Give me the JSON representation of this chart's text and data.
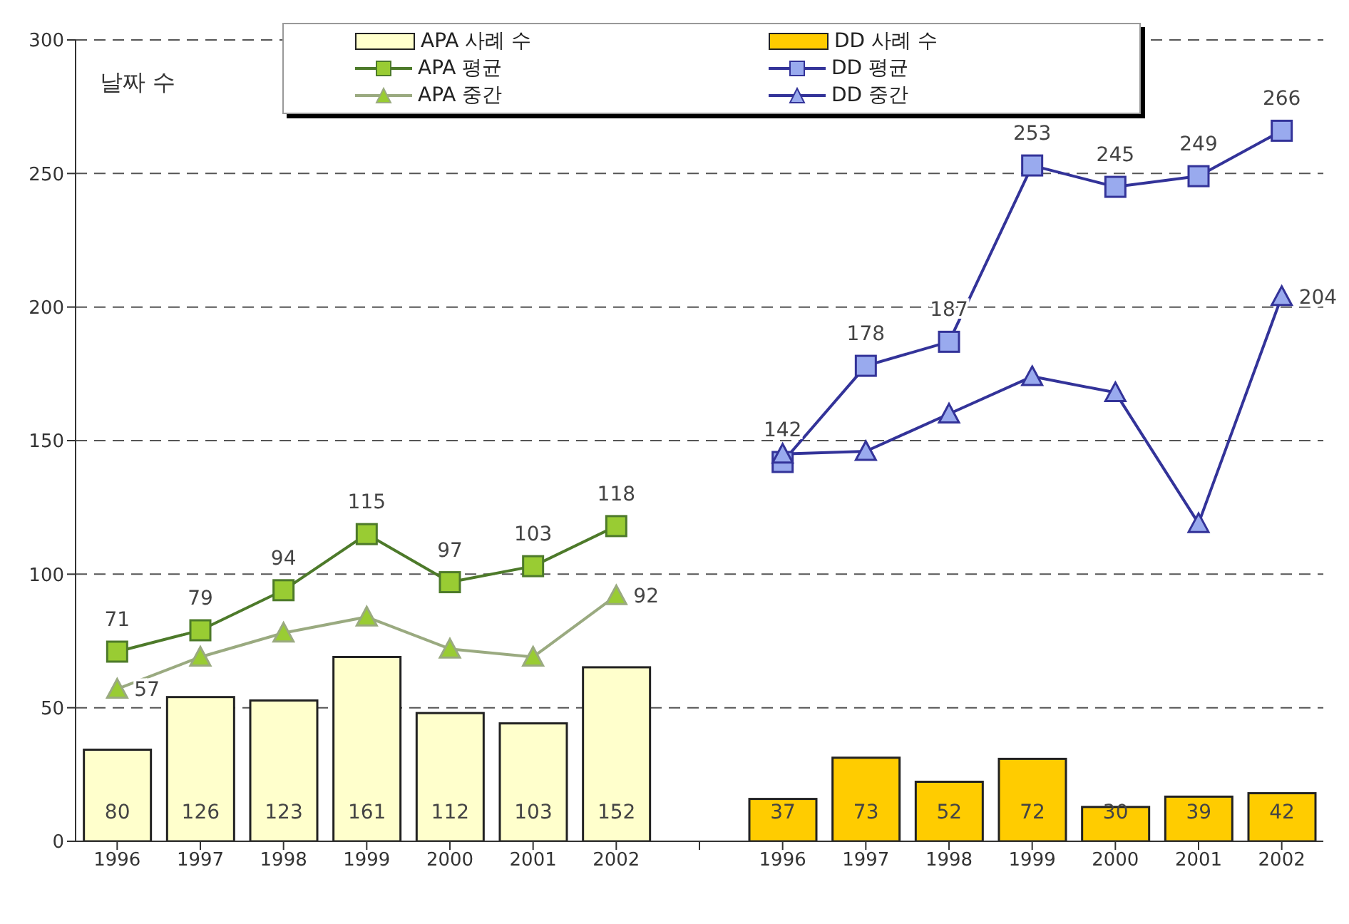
{
  "chart_data": {
    "type": "line",
    "ylabel": "날짜 수",
    "categories": [
      "1996",
      "1997",
      "1998",
      "1999",
      "2000",
      "2001",
      "2002",
      null,
      "1996",
      "1997",
      "1998",
      "1999",
      "2000",
      "2001",
      "2002"
    ],
    "series": [
      {
        "name": "APA 사례 수",
        "type": "bar",
        "axis": "y2",
        "color": "#ffffcc",
        "values": [
          80,
          126,
          123,
          161,
          112,
          103,
          152,
          null,
          null,
          null,
          null,
          null,
          null,
          null,
          null
        ],
        "value_labels": [
          "80",
          "126",
          "123",
          "161",
          "112",
          "103",
          "152",
          null,
          null,
          null,
          null,
          null,
          null,
          null,
          null
        ]
      },
      {
        "name": "DD 사례 수",
        "type": "bar",
        "axis": "y2",
        "color": "#ffcc00",
        "values": [
          null,
          null,
          null,
          null,
          null,
          null,
          null,
          null,
          37,
          73,
          52,
          72,
          30,
          39,
          42
        ],
        "value_labels": [
          null,
          null,
          null,
          null,
          null,
          null,
          null,
          null,
          "37",
          "73",
          "52",
          "72",
          "30",
          "39",
          "42"
        ]
      },
      {
        "name": "APA 평균",
        "color": "#4d7a2a",
        "marker": "square",
        "values": [
          71,
          79,
          94,
          115,
          97,
          103,
          118,
          null,
          null,
          null,
          null,
          null,
          null,
          null,
          null
        ],
        "value_labels": [
          "71",
          "79",
          "94",
          "115",
          "97",
          "103",
          "118",
          null,
          null,
          null,
          null,
          null,
          null,
          null,
          null
        ]
      },
      {
        "name": "DD 평균",
        "color": "#333399",
        "marker": "square",
        "values": [
          null,
          null,
          null,
          null,
          null,
          null,
          null,
          null,
          142,
          178,
          187,
          253,
          245,
          249,
          266
        ],
        "value_labels": [
          null,
          null,
          null,
          null,
          null,
          null,
          null,
          null,
          "142",
          "178",
          "187",
          "253",
          "245",
          "249",
          "266"
        ]
      },
      {
        "name": "APA 중간",
        "color": "#9aaa80",
        "marker": "triangle",
        "values": [
          57,
          69,
          78,
          84,
          72,
          69,
          92,
          null,
          null,
          null,
          null,
          null,
          null,
          null,
          null
        ],
        "value_labels": [
          "57",
          null,
          null,
          null,
          null,
          null,
          "92",
          null,
          null,
          null,
          null,
          null,
          null,
          null,
          null
        ]
      },
      {
        "name": "DD 중간",
        "color": "#333399",
        "marker": "triangle",
        "values": [
          null,
          null,
          null,
          null,
          null,
          null,
          null,
          null,
          145,
          146,
          160,
          174,
          168,
          119,
          204
        ],
        "value_labels": [
          null,
          null,
          null,
          null,
          null,
          null,
          null,
          null,
          null,
          null,
          null,
          null,
          null,
          null,
          "204"
        ]
      }
    ],
    "stacked": true,
    "ylim": [
      0,
      300
    ],
    "yticks": [
      0,
      50,
      100,
      150,
      200,
      250,
      300
    ],
    "y2lim": [
      0,
      700
    ],
    "grid": "y",
    "legend": "top"
  }
}
